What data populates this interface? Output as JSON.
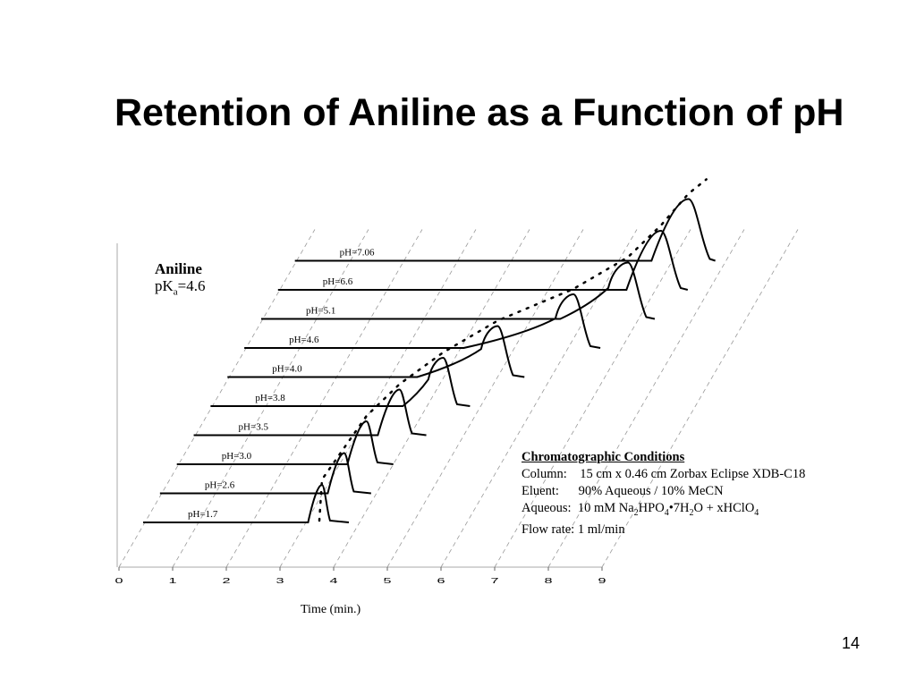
{
  "slide": {
    "title": "Retention of Aniline as a Function of pH",
    "page_number": "14"
  },
  "analyte": {
    "name": "Aniline",
    "pka_prefix": "pK",
    "pka_sub": "a",
    "pka_value": "=4.6"
  },
  "conditions": {
    "heading": "Chromatographic Conditions",
    "column": "Column:    15 cm x 0.46 cm Zorbax Eclipse XDB-C18",
    "eluent": "Eluent:      90% Aqueous / 10% MeCN",
    "aqueous_parts": [
      "Aqueous:  10 mM Na",
      "2",
      "HPO",
      "4",
      "•7H",
      "2",
      "O + xHClO",
      "4"
    ],
    "flow": "Flow rate: 1 ml/min"
  },
  "chart_data": {
    "type": "line",
    "title": "Retention of Aniline as a Function of pH",
    "xlabel": "Time (min.)",
    "ylabel": "",
    "xlim": [
      0,
      9
    ],
    "x_ticks": [
      "0",
      "1",
      "2",
      "3",
      "4",
      "5",
      "6",
      "7",
      "8",
      "9"
    ],
    "grid": true,
    "series": [
      {
        "name": "pH=1.7",
        "retention_time": 3.3
      },
      {
        "name": "pH=2.6",
        "retention_time": 3.4
      },
      {
        "name": "pH=3.0",
        "retention_time": 3.5
      },
      {
        "name": "pH=3.5",
        "retention_time": 3.8
      },
      {
        "name": "pH=3.8",
        "retention_time": 4.3
      },
      {
        "name": "pH=4.0",
        "retention_time": 5.0
      },
      {
        "name": "pH=4.6",
        "retention_time": 6.1
      },
      {
        "name": "pH=5.1",
        "retention_time": 6.8
      },
      {
        "name": "pH=6.6",
        "retention_time": 7.1
      },
      {
        "name": "pH=7.06",
        "retention_time": 7.3
      }
    ],
    "colors": {
      "trace": "#000000",
      "grid": "#999999",
      "axis": "#aaaaaa"
    }
  }
}
